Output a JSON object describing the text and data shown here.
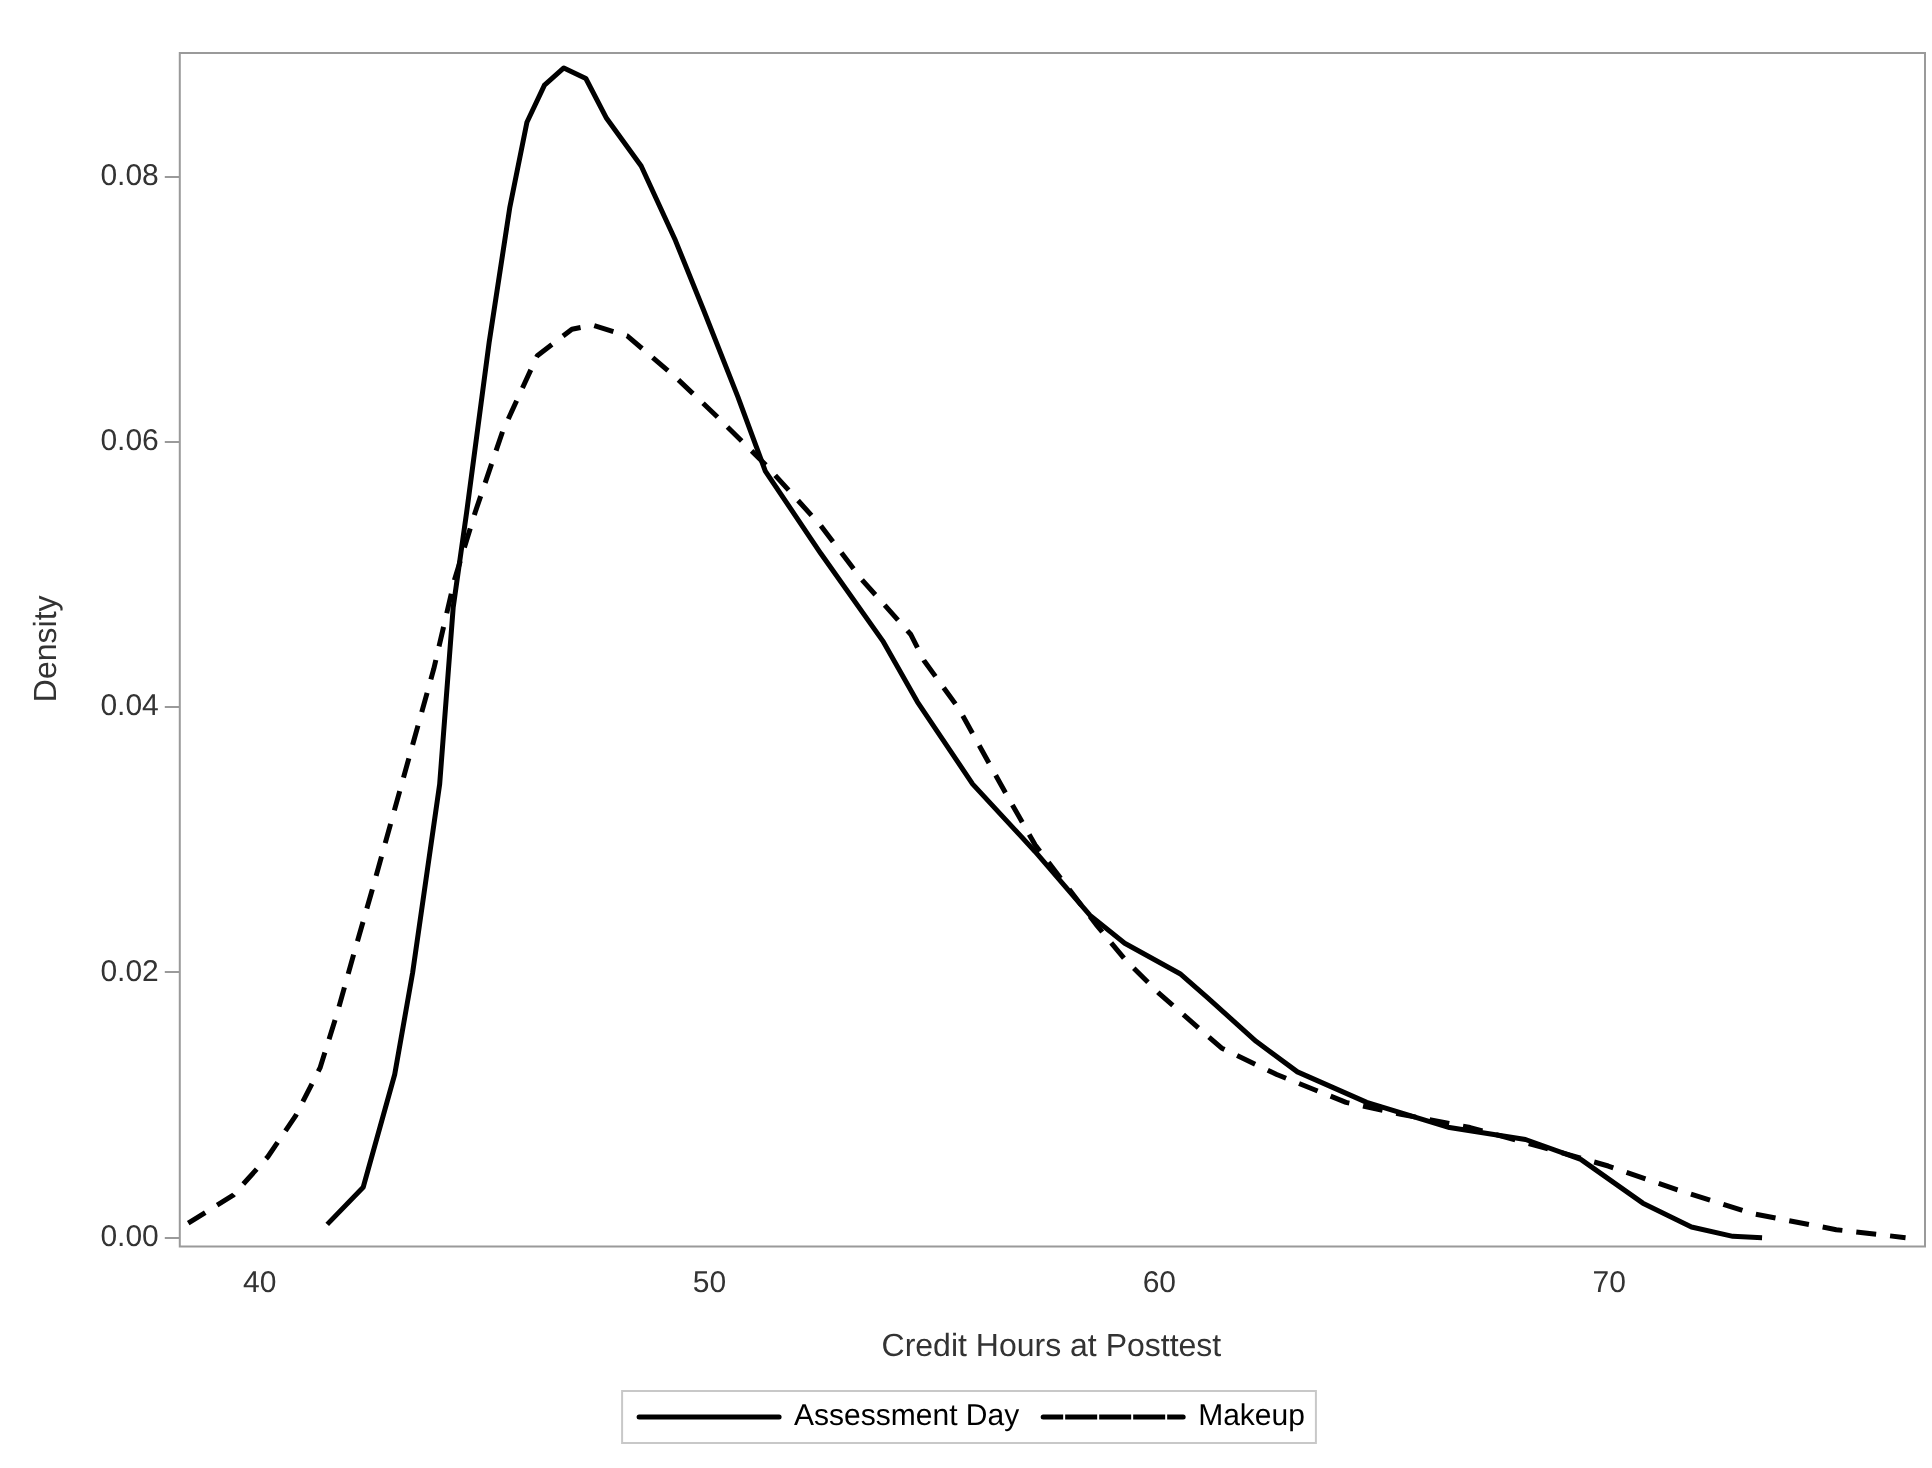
{
  "chart_data": {
    "type": "line",
    "xlabel": "Credit Hours at Posttest",
    "ylabel": "Density",
    "xlim": [
      38.2,
      77
    ],
    "ylim": [
      -0.0006,
      0.0894
    ],
    "xticks": [
      40,
      50,
      60,
      70
    ],
    "yticks": [
      {
        "value": 0,
        "label": "0.00"
      },
      {
        "value": 0.02,
        "label": "0.02"
      },
      {
        "value": 0.04,
        "label": "0.04"
      },
      {
        "value": 0.06,
        "label": "0.06"
      },
      {
        "value": 0.08,
        "label": "0.08"
      }
    ],
    "grid": false,
    "legend": "bottom",
    "marker": "none",
    "series": [
      {
        "name": "Assessment Day",
        "color": "#000000",
        "line_style": "solid",
        "x": [
          41.5,
          42.3,
          43.0,
          43.4,
          44.0,
          44.3,
          44.6,
          45.1,
          45.56,
          45.94,
          46.33,
          46.76,
          47.25,
          47.71,
          48.48,
          49.24,
          49.86,
          50.63,
          51.24,
          52.47,
          53.85,
          54.62,
          55.85,
          57.24,
          58.46,
          59.23,
          60.46,
          61.07,
          62.15,
          63.07,
          64.61,
          66.45,
          68.14,
          69.37,
          70.75,
          71.83,
          72.75,
          73.4
        ],
        "values": [
          0.001,
          0.0038,
          0.0123,
          0.02,
          0.0342,
          0.0475,
          0.0547,
          0.0675,
          0.0777,
          0.0841,
          0.0869,
          0.0882,
          0.0874,
          0.0844,
          0.0808,
          0.0752,
          0.07,
          0.0634,
          0.0578,
          0.0516,
          0.045,
          0.0404,
          0.0342,
          0.0291,
          0.0243,
          0.0222,
          0.0199,
          0.0181,
          0.0148,
          0.0125,
          0.0102,
          0.0083,
          0.0074,
          0.0059,
          0.0026,
          0.0008,
          0.0001,
          0.0
        ]
      },
      {
        "name": "Makeup",
        "color": "#000000",
        "line_style": "dashed",
        "x": [
          38.41,
          39.41,
          40.18,
          40.8,
          41.34,
          41.72,
          42.1,
          42.49,
          42.95,
          43.41,
          43.87,
          44.33,
          44.79,
          45.4,
          46.17,
          46.94,
          47.4,
          48.17,
          49.24,
          50.17,
          51.24,
          52.47,
          53.39,
          54.47,
          54.77,
          55.54,
          56.47,
          57.24,
          58.62,
          59.23,
          60.0,
          61.38,
          62.61,
          64.15,
          65.37,
          66.91,
          68.75,
          69.98,
          71.52,
          73.2,
          75.05,
          76.59
        ],
        "values": [
          0.0011,
          0.0032,
          0.0061,
          0.0092,
          0.0128,
          0.0169,
          0.0215,
          0.0261,
          0.0317,
          0.0373,
          0.0429,
          0.0496,
          0.0547,
          0.0608,
          0.0665,
          0.0685,
          0.0688,
          0.068,
          0.0649,
          0.0619,
          0.0583,
          0.0537,
          0.0496,
          0.0455,
          0.0435,
          0.0399,
          0.0342,
          0.0296,
          0.0235,
          0.021,
          0.0184,
          0.0143,
          0.0123,
          0.0102,
          0.0093,
          0.0083,
          0.0066,
          0.0054,
          0.0036,
          0.0018,
          0.0006,
          0.0
        ]
      }
    ]
  }
}
